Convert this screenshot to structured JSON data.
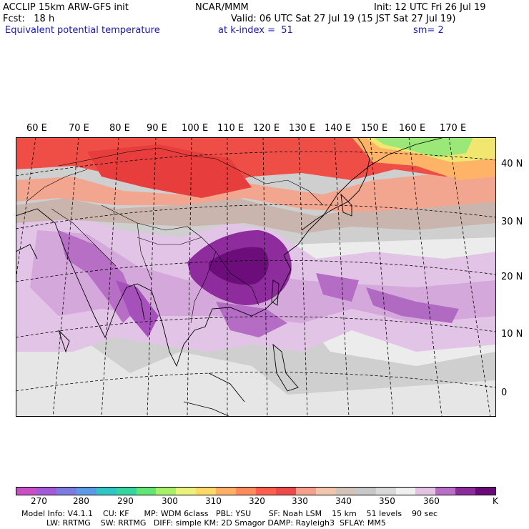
{
  "header": {
    "line1_left": "ACCLIP 15km ARW-GFS init",
    "line1_center": "NCAR/MMM",
    "line1_right": "Init: 12 UTC Fri 26 Jul 19",
    "line2_left": "Fcst:   18 h",
    "line2_right": "Valid: 06 UTC Sat 27 Jul 19 (15 JST Sat 27 Jul 19)",
    "line3_left": "Equivalent potential temperature",
    "line3_center": "at k-index =  51",
    "line3_right": "sm= 2"
  },
  "map": {
    "lon_labels": [
      "60 E",
      "70 E",
      "80 E",
      "90 E",
      "100 E",
      "110 E",
      "120 E",
      "130 E",
      "140 E",
      "150 E",
      "160 E",
      "170 E"
    ],
    "lat_labels": [
      "40 N",
      "30 N",
      "20 N",
      "10 N",
      "0"
    ]
  },
  "colorbar": {
    "colors": [
      "#c94fc9",
      "#a35ad9",
      "#7b7be0",
      "#5a9ae6",
      "#2fc5c5",
      "#33d6a0",
      "#5fe673",
      "#a6f06a",
      "#e9f27a",
      "#ffd966",
      "#ffb066",
      "#ff8a5c",
      "#ff5e4d",
      "#ef4a4a",
      "#f5a08a",
      "#f2c6aa",
      "#d4c3b8",
      "#c8c8c8",
      "#d9d9d9",
      "#f0f0f0",
      "#e4c2e4",
      "#b86ec6",
      "#8c2c9c",
      "#6a0a78"
    ],
    "labels": [
      "270",
      "280",
      "290",
      "300",
      "310",
      "320",
      "330",
      "340",
      "350",
      "360",
      "K"
    ]
  },
  "footer": {
    "line1": "Model Info: V4.1.1    CU: KF      MP: WDM 6class   PBL: YSU       SF: Noah LSM    15 km    51 levels    90 sec",
    "line2": "          LW: RRTMG    SW: RRTMG   DIFF: simple KM: 2D Smagor DAMP: Rayleigh3  SFLAY: MM5"
  }
}
